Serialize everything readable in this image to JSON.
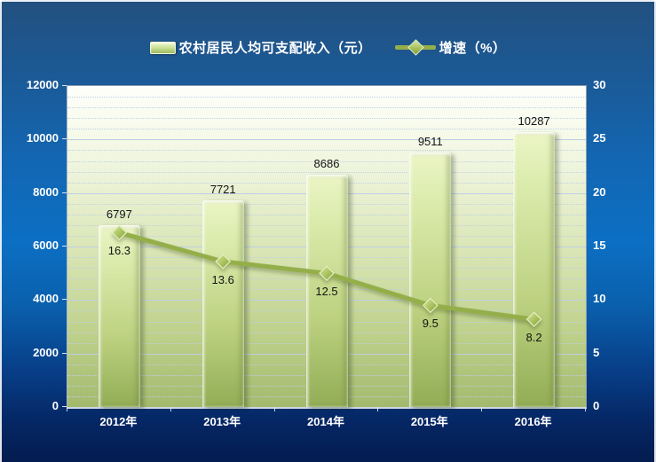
{
  "legend": {
    "bar_label": "农村居民人均可支配收入（元）",
    "line_label": "增速（%）"
  },
  "chart_data": {
    "type": "bar",
    "title": "",
    "categories": [
      "2012年",
      "2013年",
      "2014年",
      "2015年",
      "2016年"
    ],
    "series": [
      {
        "name": "农村居民人均可支配收入（元）",
        "type": "bar",
        "axis": "left",
        "values": [
          6797,
          7721,
          8686,
          9511,
          10287
        ]
      },
      {
        "name": "增速（%）",
        "type": "line",
        "axis": "right",
        "values": [
          16.3,
          13.6,
          12.5,
          9.5,
          8.2
        ]
      }
    ],
    "left_axis": {
      "min": 0,
      "max": 12000,
      "major": 2000,
      "minor": 400,
      "ticks": [
        0,
        2000,
        4000,
        6000,
        8000,
        10000,
        12000
      ]
    },
    "right_axis": {
      "min": 0,
      "max": 30,
      "major": 5,
      "minor": 1,
      "ticks": [
        0,
        5,
        10,
        15,
        20,
        25,
        30
      ]
    },
    "grid": "major-solid-minor-dotted",
    "legend_position": "top-center",
    "colors": {
      "bar_light": "#ecf5c6",
      "bar_dark": "#92ad55",
      "line": "#94af49",
      "marker_border": "#e6efc2",
      "axis_text": "#ffffff",
      "data_label_text": "#141414",
      "background_top_blue": "#23507f",
      "background_mid_blue": "#0c6fc3",
      "background_bottom_blue": "#041c50",
      "plot_top": "#fefefb",
      "plot_bottom": "#a3ba6e"
    }
  }
}
